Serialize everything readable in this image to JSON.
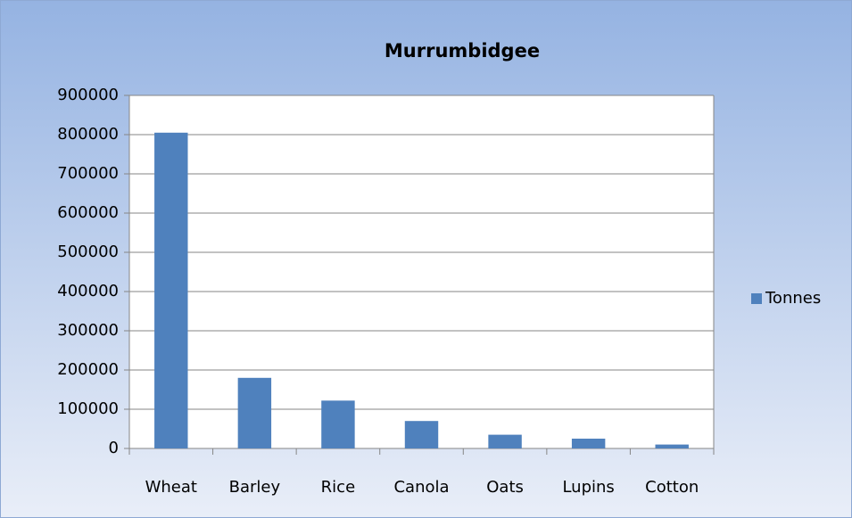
{
  "chart_data": {
    "type": "bar",
    "title": "Murrumbidgee",
    "categories": [
      "Wheat",
      "Barley",
      "Rice",
      "Canola",
      "Oats",
      "Lupins",
      "Cotton"
    ],
    "series": [
      {
        "name": "Tonnes",
        "color": "#4f81bd",
        "values": [
          805000,
          180000,
          122000,
          70000,
          35000,
          25000,
          10000
        ]
      }
    ],
    "ylim": [
      0,
      900000
    ],
    "yticks": [
      0,
      100000,
      200000,
      300000,
      400000,
      500000,
      600000,
      700000,
      800000,
      900000
    ],
    "grid": true,
    "legend": "right"
  }
}
